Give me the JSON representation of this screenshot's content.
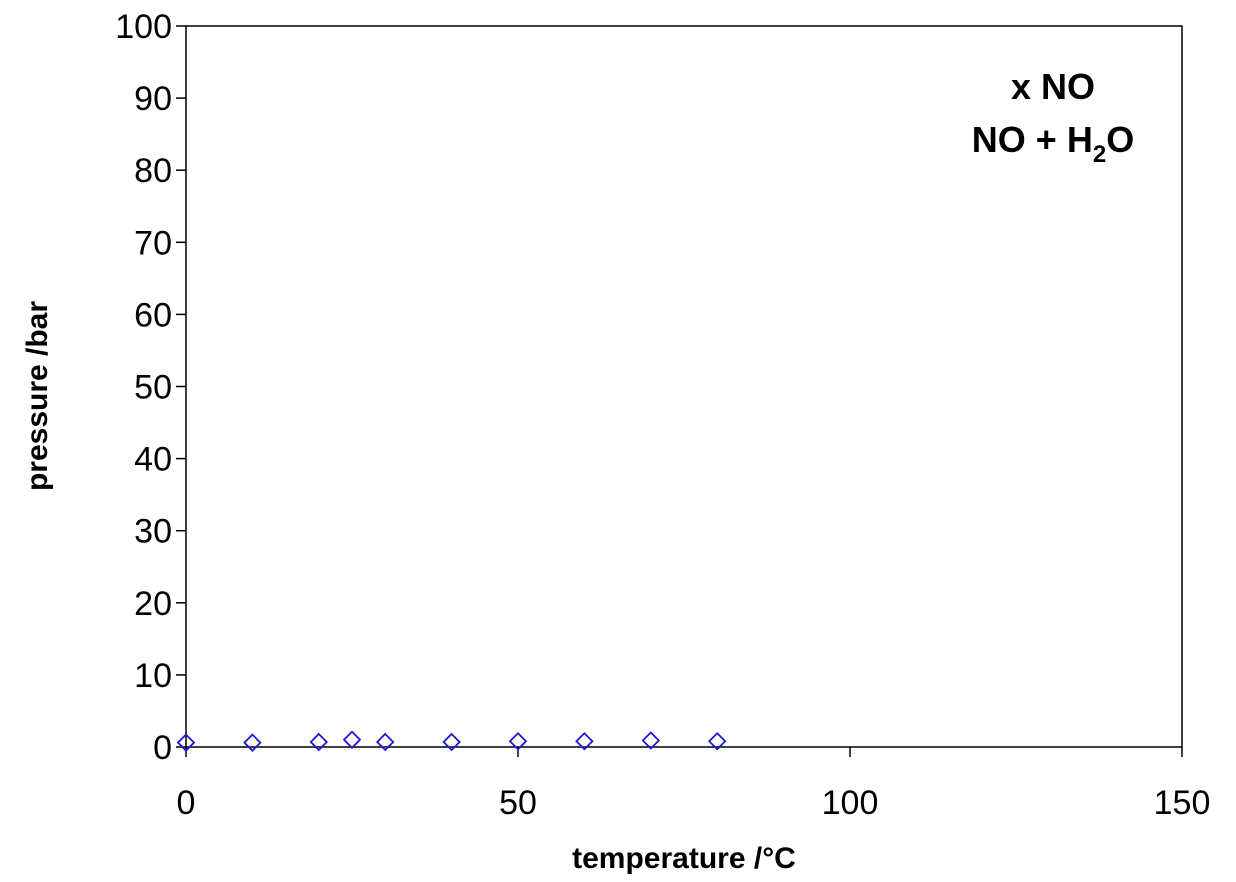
{
  "chart_data": {
    "type": "scatter",
    "xlabel": "temperature /°C",
    "ylabel": "pressure /bar",
    "xlim": [
      0,
      150
    ],
    "ylim": [
      0,
      100
    ],
    "xticks": [
      "0",
      "50",
      "100",
      "150"
    ],
    "yticks": [
      "0",
      "10",
      "20",
      "30",
      "40",
      "50",
      "60",
      "70",
      "80",
      "90",
      "100"
    ],
    "grid": false,
    "legend": "none",
    "annotations": [
      {
        "text": "x NO"
      },
      {
        "text_main": "NO + H",
        "subscript": "2",
        "text_tail": "O"
      }
    ],
    "series": [
      {
        "marker": "diamond-open",
        "color": "#1a1acc",
        "x": [
          0,
          10,
          20,
          25,
          30,
          40,
          50,
          60,
          70,
          80
        ],
        "y": [
          0.6,
          0.6,
          0.7,
          1.0,
          0.7,
          0.7,
          0.8,
          0.8,
          0.9,
          0.8
        ]
      }
    ]
  }
}
